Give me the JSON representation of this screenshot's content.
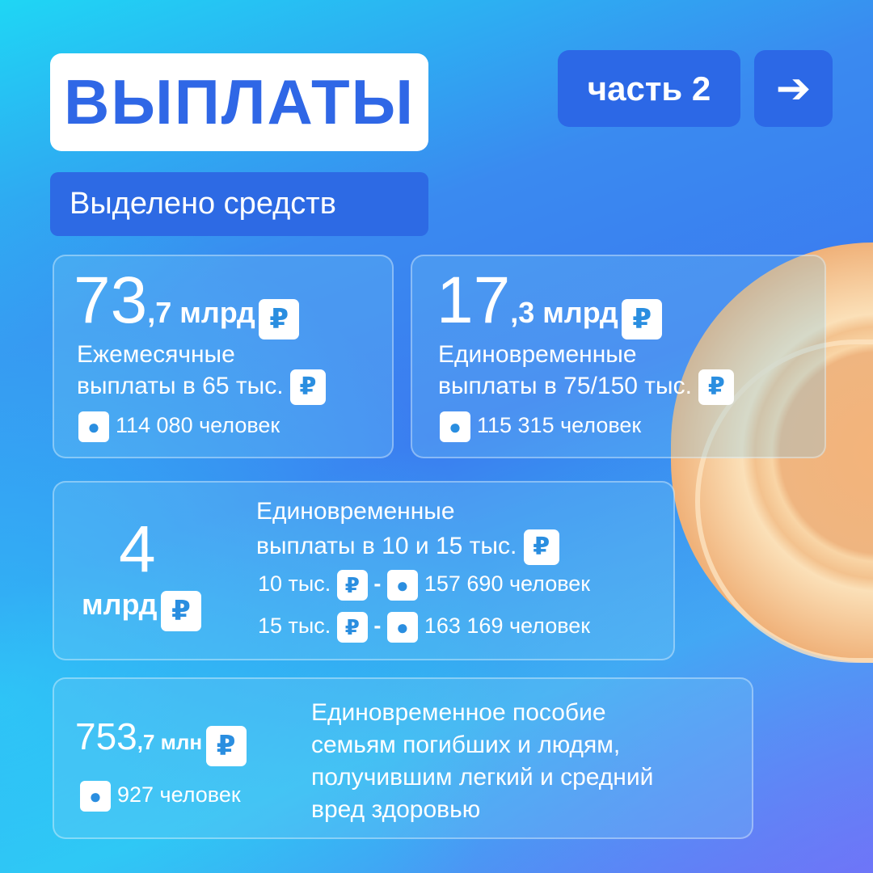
{
  "header": {
    "title": "ВЫПЛАТЫ",
    "part_label": "часть 2",
    "next_icon": "arrow-right-icon",
    "subtitle": "Выделено средств"
  },
  "cards": [
    {
      "amount_int": "73",
      "amount_dec": ",7 млрд",
      "desc_line1": "Ежемесячные",
      "desc_line2": "выплаты в 65 тыс.",
      "people": "114 080 человек"
    },
    {
      "amount_int": "17",
      "amount_dec": ",3 млрд",
      "desc_line1": "Единовременные",
      "desc_line2": "выплаты в 75/150 тыс.",
      "people": "115 315 человек"
    },
    {
      "amount_int": "4",
      "amount_unit": "млрд",
      "desc_line1": "Единовременные",
      "desc_line2": "выплаты в 10 и 15 тыс.",
      "rows": [
        {
          "label": "10 тыс.",
          "sep": "-",
          "people": "157 690 человек"
        },
        {
          "label": "15 тыс.",
          "sep": "-",
          "people": "163 169 человек"
        }
      ]
    },
    {
      "amount_int": "753",
      "amount_dec": ",7 млн",
      "people": "927 человек",
      "desc_lines": [
        "Единовременное пособие",
        "семьям погибших и людям,",
        "получившим легкий и средний",
        "вред здоровью"
      ]
    }
  ],
  "icons": {
    "currency": "ruble-icon",
    "person": "person-icon",
    "ruble_glyph": "₽",
    "person_glyph": "👤"
  },
  "colors": {
    "accent": "#2c68e6",
    "coin": "#f0b27a"
  }
}
